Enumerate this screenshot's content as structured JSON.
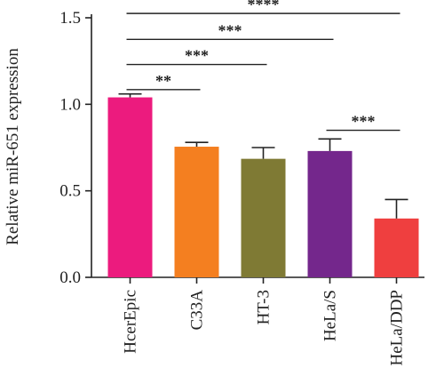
{
  "chart_data": {
    "type": "bar",
    "title": "",
    "xlabel": "",
    "ylabel": "Relative miR-651 expression",
    "ylim": [
      0,
      1.5
    ],
    "yticks": [
      0.0,
      0.5,
      1.0,
      1.5
    ],
    "ytick_labels": [
      "0.0",
      "0.5",
      "1.0",
      "1.5"
    ],
    "categories": [
      "HcerEpic",
      "C33A",
      "HT-3",
      "HeLa/S",
      "HeLa/DDP"
    ],
    "values": [
      1.04,
      0.755,
      0.685,
      0.73,
      0.34
    ],
    "errors": [
      0.02,
      0.025,
      0.065,
      0.07,
      0.11
    ],
    "colors": [
      "#EC1B7E",
      "#F47F20",
      "#7F7A34",
      "#74278C",
      "#EF3F3F"
    ],
    "grid": false,
    "significance": [
      {
        "from": 0,
        "to": 4,
        "level": 1.525,
        "label": "****"
      },
      {
        "from": 0,
        "to": 3,
        "level": 1.375,
        "label": "***"
      },
      {
        "from": 0,
        "to": 2,
        "level": 1.23,
        "label": "***"
      },
      {
        "from": 0,
        "to": 1,
        "level": 1.085,
        "label": "**"
      },
      {
        "from": 3,
        "to": 4,
        "level": 0.85,
        "label": "***"
      }
    ]
  }
}
